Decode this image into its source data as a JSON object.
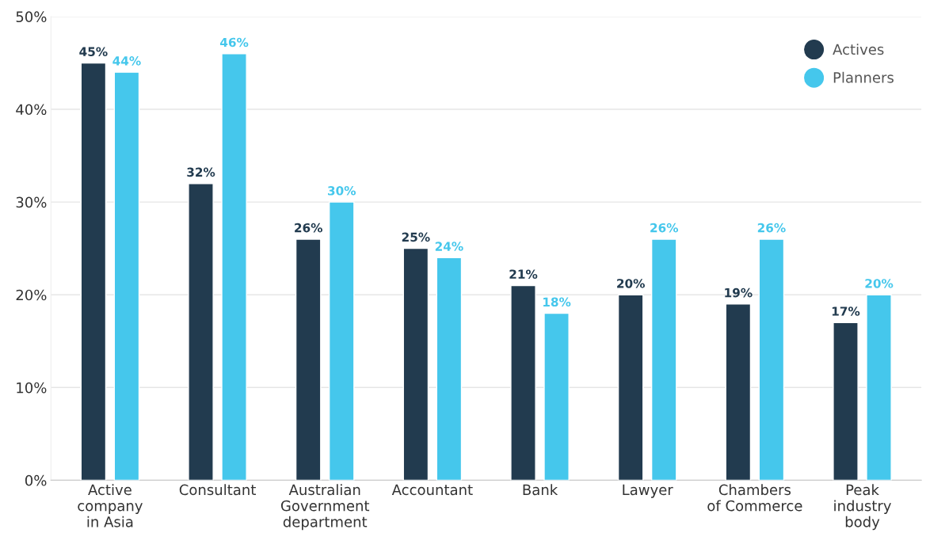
{
  "chart_data": {
    "type": "bar",
    "categories": [
      "Active\ncompany\nin Asia",
      "Consultant",
      "Australian\nGovernment\ndepartment",
      "Accountant",
      "Bank",
      "Lawyer",
      "Chambers\nof Commerce",
      "Peak\nindustry\nbody"
    ],
    "series": [
      {
        "name": "Actives",
        "color": "#223b4f",
        "values": [
          45,
          32,
          26,
          25,
          21,
          20,
          19,
          17
        ],
        "value_labels": [
          "45%",
          "32%",
          "26%",
          "25%",
          "21%",
          "20%",
          "19%",
          "17%"
        ]
      },
      {
        "name": "Planners",
        "color": "#45c7ec",
        "values": [
          44,
          46,
          30,
          24,
          18,
          26,
          26,
          20
        ],
        "value_labels": [
          "44%",
          "46%",
          "30%",
          "24%",
          "18%",
          "26%",
          "26%",
          "20%"
        ]
      }
    ],
    "ylim": [
      0,
      50
    ],
    "yticks": [
      {
        "value": 0,
        "label": "0%"
      },
      {
        "value": 10,
        "label": "10%"
      },
      {
        "value": 20,
        "label": "20%"
      },
      {
        "value": 30,
        "label": "30%"
      },
      {
        "value": 40,
        "label": "40%"
      },
      {
        "value": 50,
        "label": "50%"
      }
    ],
    "grid": "y",
    "legend": "top right"
  }
}
